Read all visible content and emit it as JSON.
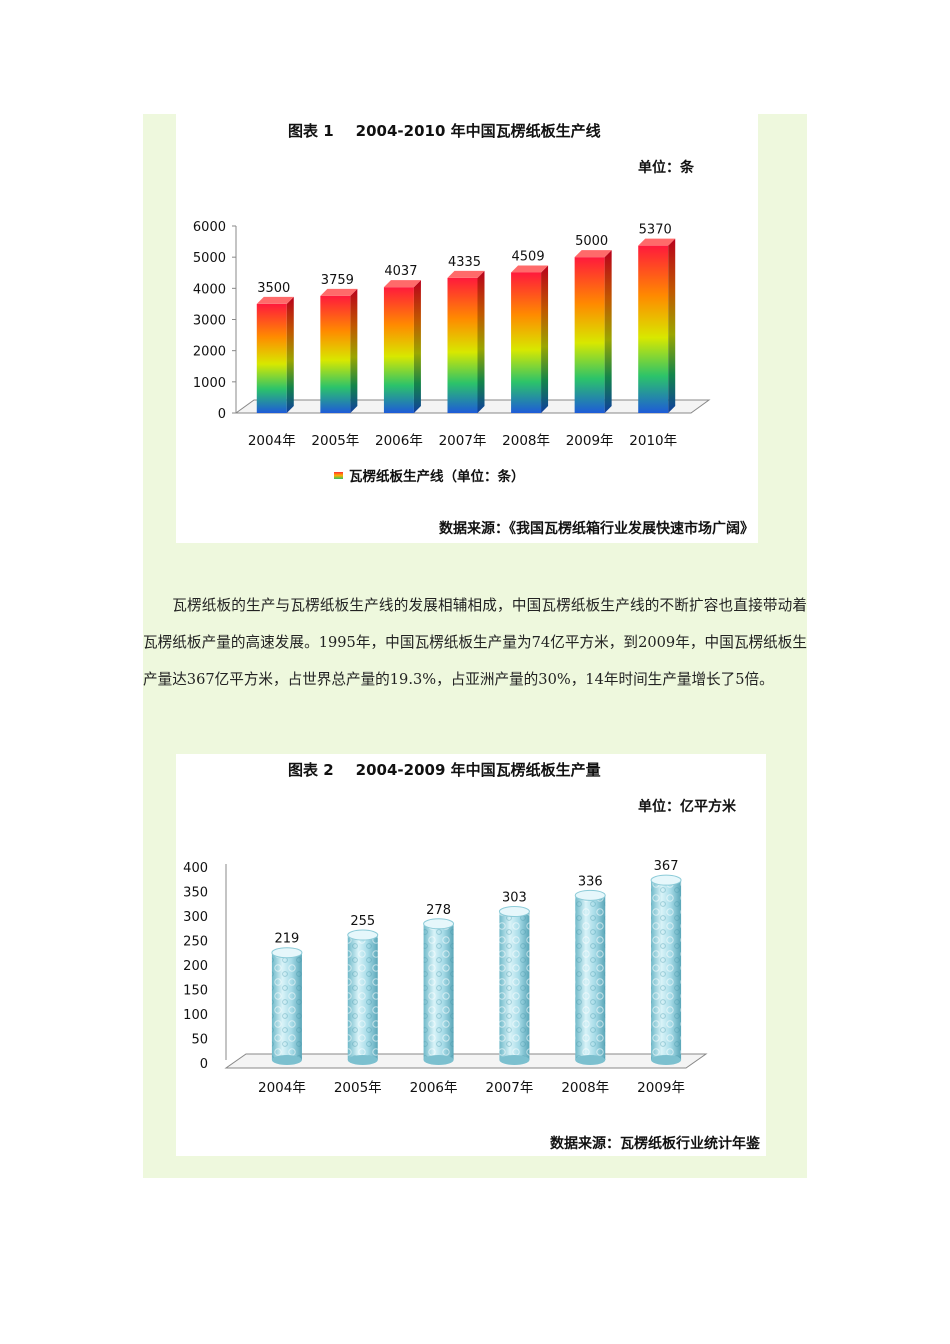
{
  "figure1": {
    "title_prefix": "图表 1",
    "title": "2004-2010 年中国瓦楞纸板生产线",
    "unit": "单位：条",
    "source": "数据来源：《我国瓦楞纸箱行业发展快速市场广阔》",
    "legend": "瓦楞纸板生产线（单位：条）"
  },
  "figure2": {
    "title_prefix": "图表 2",
    "title": "2004-2009 年中国瓦楞纸板生产量",
    "unit": "单位：亿平方米",
    "source": "数据来源：瓦楞纸板行业统计年鉴"
  },
  "paragraph": "瓦楞纸板的生产与瓦楞纸板生产线的发展相辅相成，中国瓦楞纸板生产线的不断扩容也直接带动着瓦楞纸板产量的高速发展。1995年，中国瓦楞纸板生产量为74亿平方米，到2009年，中国瓦楞纸板生产量达367亿平方米，占世界总产量的19.3%，占亚洲产量的30%，14年时间生产量增长了5倍。",
  "chart_data": [
    {
      "type": "bar",
      "title": "2004-2010 年中国瓦楞纸板生产线",
      "categories": [
        "2004年",
        "2005年",
        "2006年",
        "2007年",
        "2008年",
        "2009年",
        "2010年"
      ],
      "series": [
        {
          "name": "瓦楞纸板生产线（单位：条）",
          "values": [
            3500,
            3759,
            4037,
            4335,
            4509,
            5000,
            5370
          ]
        }
      ],
      "ylim": [
        0,
        6000
      ],
      "yticks": [
        0,
        1000,
        2000,
        3000,
        4000,
        5000,
        6000
      ],
      "legend": "bottom",
      "grid": false
    },
    {
      "type": "bar",
      "title": "2004-2009 年中国瓦楞纸板生产量",
      "categories": [
        "2004年",
        "2005年",
        "2006年",
        "2007年",
        "2008年",
        "2009年"
      ],
      "values": [
        219,
        255,
        278,
        303,
        336,
        367
      ],
      "ylim": [
        0,
        400
      ],
      "yticks": [
        0,
        50,
        100,
        150,
        200,
        250,
        300,
        350,
        400
      ],
      "grid": false
    }
  ]
}
